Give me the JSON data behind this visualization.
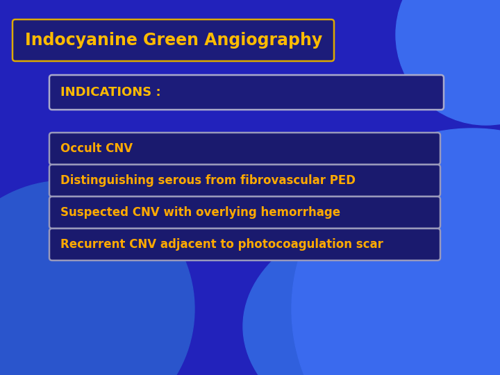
{
  "title": "Indocyanine Green Angiography",
  "indications_label": "INDICATIONS :",
  "bullet_items": [
    "Occult CNV",
    "Distinguishing serous from fibrovascular PED",
    "Suspected CNV with overlying hemorrhage",
    "Recurrent CNV adjacent to photocoagulation scar"
  ],
  "bg_color_main": "#2222BB",
  "title_box_bg": "#1C1C7A",
  "title_box_border": "#DDAA00",
  "title_text_color": "#FFBB00",
  "indications_box_bg": "#1C1C7A",
  "indications_box_border": "#AAAACC",
  "indications_text_color": "#FFBB00",
  "bullet_box_bg": "#1A1A6E",
  "bullet_box_border": "#9999BB",
  "bullet_text_color": "#FFAA00",
  "blob_color_br": "#3A6AEE",
  "blob_color_bl": "#2A55CC",
  "title_fontsize": 17,
  "indications_fontsize": 13,
  "bullet_fontsize": 12
}
